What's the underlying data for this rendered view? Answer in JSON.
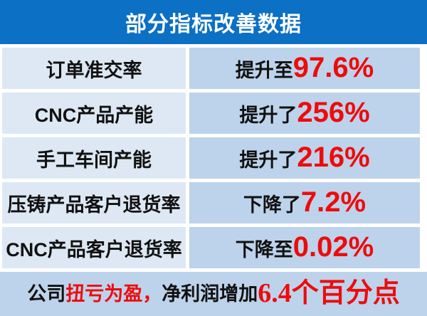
{
  "header": {
    "title": "部分指标改善数据"
  },
  "table": {
    "rows": [
      {
        "label": "订单准交率",
        "prefix": "提升至",
        "value": "97.6%"
      },
      {
        "label": "CNC产品产能",
        "prefix": "提升了",
        "value": "256%"
      },
      {
        "label": "手工车间产能",
        "prefix": "提升了",
        "value": "216%"
      },
      {
        "label": "压铸产品客户退货率",
        "prefix": "下降了",
        "value": "7.2%"
      },
      {
        "label": "CNC产品客户退货率",
        "prefix": "下降至",
        "value": "0.02%"
      }
    ]
  },
  "footer": {
    "segments": [
      {
        "text": "公司",
        "style": "black-normal"
      },
      {
        "text": "扭亏为盈，",
        "style": "red-normal"
      },
      {
        "text": "净利润增加",
        "style": "black-normal"
      },
      {
        "text": "6.4个百分点",
        "style": "red-large"
      }
    ]
  },
  "colors": {
    "header_bg": "#0c70c4",
    "header_text": "#ffffff",
    "label_cell_bg": "#dde8f4",
    "value_cell_bg": "#bdd3eb",
    "footer_bg": "#bdd3eb",
    "accent_red": "#ee0b0b",
    "text_black": "#111111",
    "page_bg": "#ffffff"
  }
}
